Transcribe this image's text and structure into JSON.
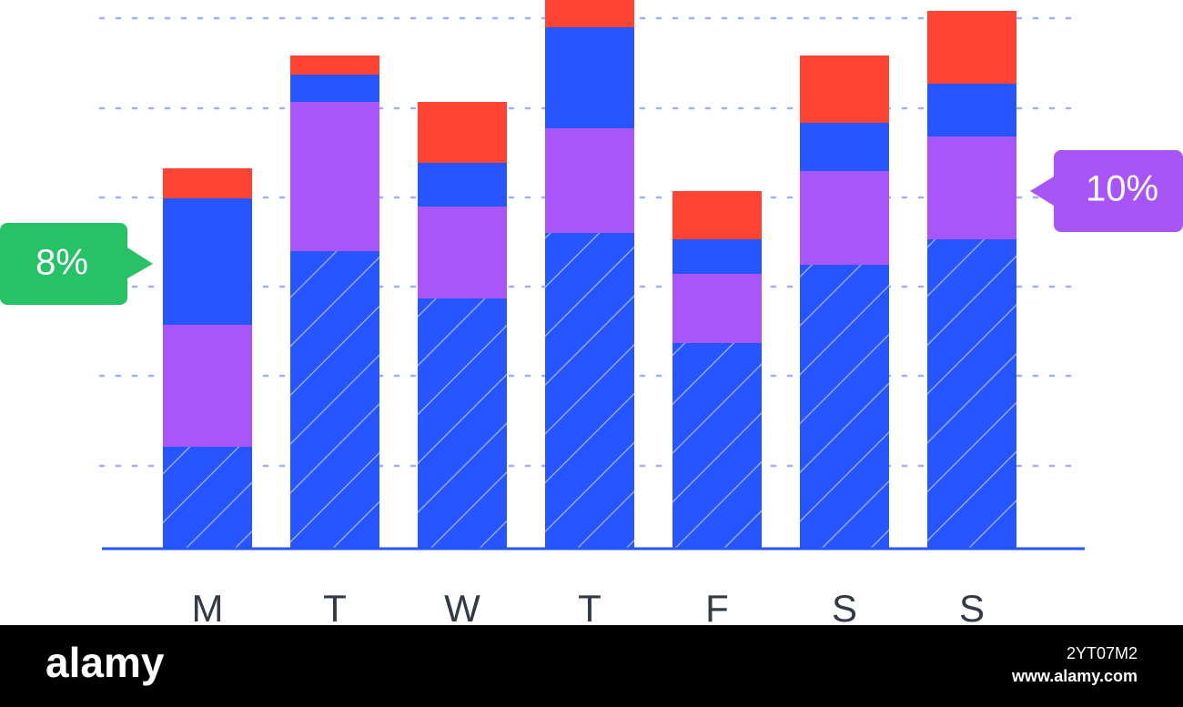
{
  "chart_data": {
    "type": "stacked-bar",
    "categories": [
      "M",
      "T",
      "W",
      "T",
      "F",
      "S",
      "S"
    ],
    "series": [
      {
        "color": "#2655ff",
        "hatched": true,
        "values": [
          111,
          326,
          274,
          346,
          225,
          311,
          339
        ]
      },
      {
        "color": "#a855fb",
        "values": [
          134,
          164,
          101,
          115,
          76,
          103,
          113
        ]
      },
      {
        "color": "#2655ff",
        "values": [
          139,
          30,
          48,
          111,
          38,
          53,
          58
        ]
      },
      {
        "color": "#ff4433",
        "values": [
          33,
          21,
          67,
          30,
          53,
          74,
          80
        ]
      }
    ],
    "ylim": [
      0,
      602
    ],
    "yticks": [
      90,
      189,
      287,
      385,
      483,
      582
    ],
    "grid": true,
    "annotations": [
      {
        "text": "8%",
        "color": "#27c266",
        "category": 0
      },
      {
        "text": "10%",
        "color": "#a855f7",
        "category": 6
      }
    ]
  },
  "footer": {
    "brand": "alamy",
    "image_id": "2YT07M2",
    "url": "www.alamy.com"
  }
}
